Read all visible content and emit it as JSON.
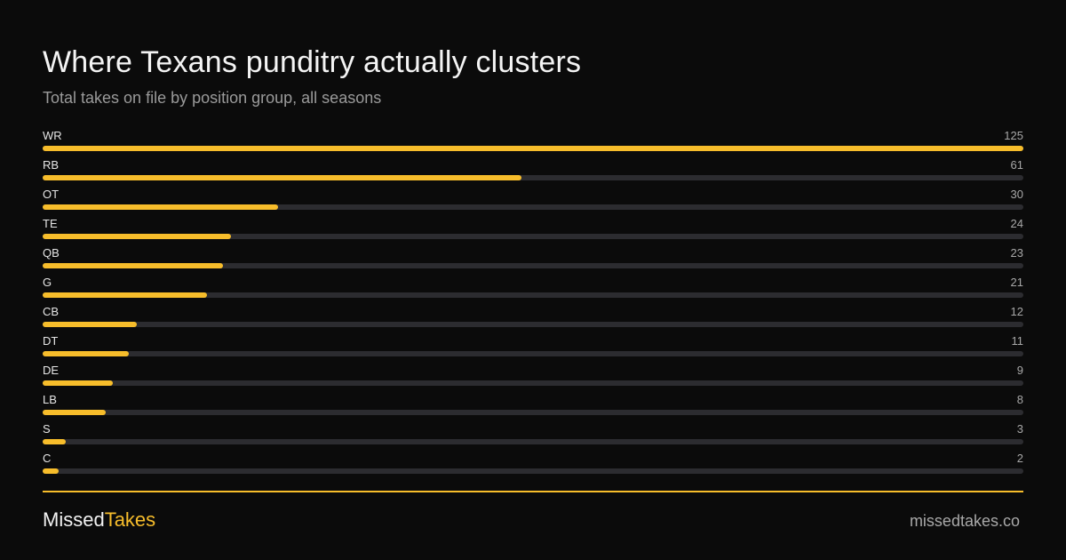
{
  "header": {
    "title": "Where Texans punditry actually clusters",
    "subtitle": "Total takes on file by position group, all seasons"
  },
  "colors": {
    "background": "#0b0b0b",
    "accent": "#f7bd2b",
    "track": "#2c2c30",
    "text": "#f2f2f2",
    "muted": "#a8a8a8"
  },
  "chart_data": {
    "type": "bar",
    "orientation": "horizontal",
    "title": "Where Texans punditry actually clusters",
    "subtitle": "Total takes on file by position group, all seasons",
    "categories": [
      "WR",
      "RB",
      "OT",
      "TE",
      "QB",
      "G",
      "CB",
      "DT",
      "DE",
      "LB",
      "S",
      "C"
    ],
    "values": [
      125,
      61,
      30,
      24,
      23,
      21,
      12,
      11,
      9,
      8,
      3,
      2
    ],
    "xlim": [
      0,
      125
    ],
    "grid": false,
    "legend": "none"
  },
  "footer": {
    "brand_part1": "Missed",
    "brand_part2": "Takes",
    "site": "missedtakes.co"
  }
}
